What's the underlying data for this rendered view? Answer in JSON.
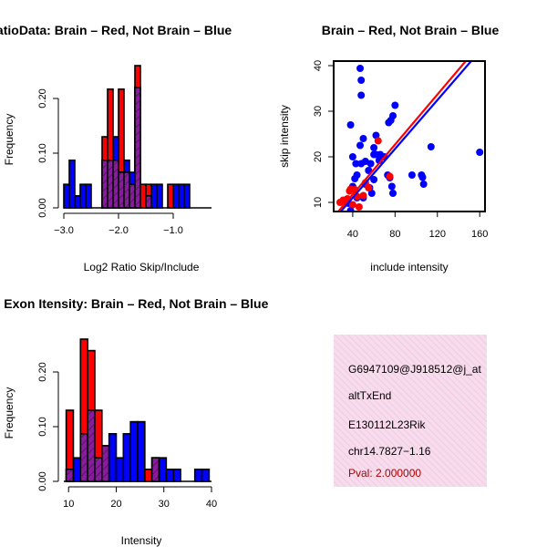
{
  "chart_data": [
    {
      "type": "histogram",
      "title": "RatioData: Brain – Red, Not Brain – Blue",
      "xlabel": "Log2 Ratio Skip/Include",
      "ylabel": "Frequency",
      "xlim": [
        -3.0,
        -0.3
      ],
      "ylim": [
        0,
        0.25
      ],
      "xticks": [
        -3.0,
        -2.0,
        -1.0
      ],
      "xtick_labels": [
        "−3.0",
        "−2.0",
        "−1.0"
      ],
      "yticks": [
        0.0,
        0.1,
        0.2
      ],
      "ytick_labels": [
        "0.00",
        "0.10",
        "0.20"
      ],
      "bin_width": 0.1,
      "bin_start": -3.0,
      "series": [
        {
          "name": "Not Brain",
          "color": "#0000ff",
          "values": [
            0.043,
            0.087,
            0.022,
            0.043,
            0.043,
            0.0,
            0.0,
            0.087,
            0.087,
            0.13,
            0.065,
            0.087,
            0.065,
            0.22,
            0.0,
            0.022,
            0.043,
            0.043,
            0.0,
            0.0,
            0.043,
            0.043,
            0.043
          ]
        },
        {
          "name": "Brain",
          "color": "#ff0000",
          "values": [
            0.0,
            0.0,
            0.0,
            0.0,
            0.0,
            0.0,
            0.0,
            0.13,
            0.217,
            0.087,
            0.217,
            0.065,
            0.043,
            0.26,
            0.043,
            0.043,
            0.0,
            0.0,
            0.0,
            0.043,
            0.0,
            0.0,
            0.0
          ]
        }
      ]
    },
    {
      "type": "scatter",
      "title": "Brain – Red, Not Brain – Blue",
      "xlabel": "include intensity",
      "ylabel": "skip intensity",
      "xlim": [
        22,
        165
      ],
      "ylim": [
        8,
        41
      ],
      "xticks": [
        40,
        80,
        120,
        160
      ],
      "xtick_labels": [
        "40",
        "80",
        "120",
        "160"
      ],
      "yticks": [
        10,
        20,
        30,
        40
      ],
      "ytick_labels": [
        "10",
        "20",
        "30",
        "40"
      ],
      "series": [
        {
          "name": "Not Brain",
          "color": "#0000ff",
          "x": [
            47,
            48,
            48,
            38,
            40,
            47,
            50,
            42,
            44,
            48,
            52,
            55,
            57,
            60,
            60,
            62,
            65,
            66,
            70,
            74,
            76,
            78,
            80,
            73,
            75,
            78,
            77,
            96,
            105,
            107,
            106,
            114,
            160,
            58,
            60,
            62,
            56,
            44,
            40,
            43,
            52,
            38,
            36,
            50
          ],
          "y": [
            39.4,
            36.8,
            33.5,
            27,
            20,
            22.5,
            24,
            15.2,
            16,
            18.5,
            19,
            17,
            18.5,
            22,
            20.5,
            20.5,
            19.2,
            20.5,
            20,
            27.5,
            28,
            29,
            31.3,
            16,
            15.4,
            12,
            13.5,
            16,
            16,
            14,
            15.5,
            22.2,
            21,
            12,
            15,
            24.7,
            13.2,
            11,
            13.5,
            18.5,
            14,
            8.2,
            9.8,
            11
          ]
        },
        {
          "name": "Brain",
          "color": "#ff0000",
          "x": [
            28,
            31,
            35,
            37,
            42,
            44,
            40,
            46,
            50,
            52,
            55,
            64,
            75,
            38
          ],
          "y": [
            10,
            10.5,
            10.8,
            12.5,
            12.8,
            11.3,
            9.5,
            9,
            11.5,
            14.3,
            13.2,
            23.5,
            15.7,
            12.9
          ]
        }
      ],
      "fit_lines": [
        {
          "name": "Not Brain fit",
          "color": "#0000ff",
          "x": [
            22,
            165
          ],
          "y": [
            6.2,
            44.5
          ]
        },
        {
          "name": "Brain fit",
          "color": "#ff0000",
          "x": [
            22,
            165
          ],
          "y": [
            6.8,
            46.0
          ]
        }
      ]
    },
    {
      "type": "histogram",
      "title": "Average Exon Itensity: Brain – Red, Not Brain – Blue",
      "xlabel": "Intensity",
      "ylabel": "Frequency",
      "xlim": [
        9.0,
        40.0
      ],
      "ylim": [
        0,
        0.25
      ],
      "xticks": [
        10,
        20,
        30,
        40
      ],
      "xtick_labels": [
        "10",
        "20",
        "30",
        "40"
      ],
      "yticks": [
        0.0,
        0.1,
        0.2
      ],
      "ytick_labels": [
        "0.00",
        "0.10",
        "0.20"
      ],
      "bin_width": 1.5,
      "bin_start": 9.5,
      "series": [
        {
          "name": "Not Brain",
          "color": "#0000ff",
          "values": [
            0.022,
            0.043,
            0.087,
            0.13,
            0.043,
            0.065,
            0.087,
            0.043,
            0.087,
            0.109,
            0.109,
            0.0,
            0.043,
            0.043,
            0.022,
            0.022,
            0.0,
            0.0,
            0.022,
            0.022
          ]
        },
        {
          "name": "Brain",
          "color": "#ff0000",
          "values": [
            0.13,
            0.0,
            0.26,
            0.239,
            0.13,
            0.065,
            0.0,
            0.0,
            0.0,
            0.0,
            0.0,
            0.022,
            0.043,
            0.0,
            0.0,
            0.0,
            0.0,
            0.0,
            0.0,
            0.0
          ]
        }
      ]
    }
  ],
  "info_box": {
    "lines": [
      "G6947109@J918512@j_at",
      "altTxEnd",
      "E130112L23Rik",
      "chr14.7827−1.16"
    ],
    "pval": "Pval: 2.000000"
  }
}
